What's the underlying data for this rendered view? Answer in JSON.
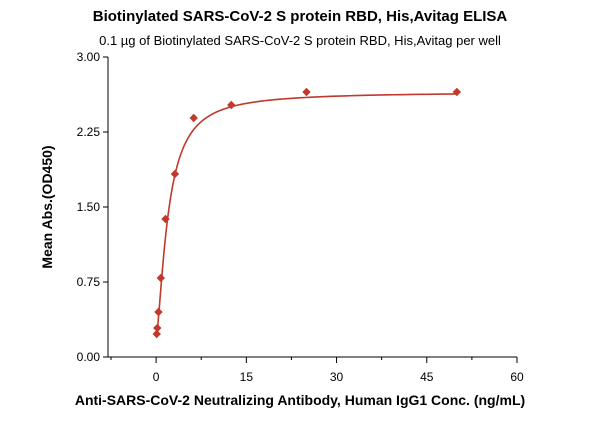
{
  "chart_data": {
    "type": "scatter",
    "title": "Biotinylated SARS-CoV-2 S protein RBD, His,Avitag ELISA",
    "subtitle": "0.1 µg of Biotinylated SARS-CoV-2 S protein RBD, His,Avitag per well",
    "xlabel": "Anti-SARS-CoV-2 Neutralizing Antibody, Human IgG1 Conc. (ng/mL)",
    "ylabel": "Mean Abs.(OD450)",
    "xlim": [
      -8,
      60
    ],
    "ylim": [
      0,
      3
    ],
    "xticks": [
      0,
      15,
      30,
      45,
      60
    ],
    "xtick_labels": [
      "0",
      "15",
      "30",
      "45",
      "60"
    ],
    "yticks": [
      0,
      0.75,
      1.5,
      2.25,
      3
    ],
    "ytick_labels": [
      "0.00",
      "0.75",
      "1.50",
      "2.25",
      "3.00"
    ],
    "grid": false,
    "legend": "none",
    "series": [
      {
        "marker": "diamond",
        "color": "#c0392b",
        "x": [
          0.098,
          0.195,
          0.39,
          0.78,
          1.56,
          3.125,
          6.25,
          12.5,
          25,
          50
        ],
        "y": [
          0.23,
          0.29,
          0.45,
          0.79,
          1.38,
          1.83,
          2.39,
          2.52,
          2.65,
          2.65
        ]
      }
    ],
    "fit": {
      "type": "curve",
      "color": "#c0392b",
      "bottom": 0.2,
      "top": 2.65,
      "ec50": 2.0,
      "hill": 1.5
    }
  }
}
